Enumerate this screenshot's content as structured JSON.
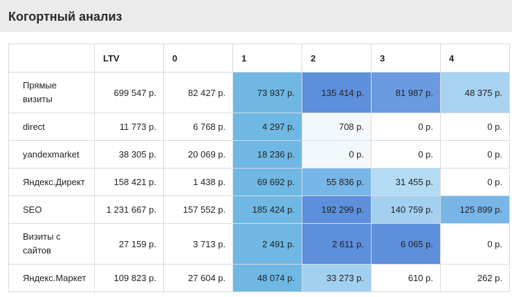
{
  "page": {
    "title": "Когортный анализ"
  },
  "table": {
    "headers": [
      "",
      "LTV",
      "0",
      "1",
      "2",
      "3",
      "4"
    ],
    "rows": [
      {
        "name": "Прямые визиты",
        "cells": [
          "699 547 р.",
          "82 427 р.",
          "73 937 р.",
          "135 414 р.",
          "81 987 р.",
          "48 375 р."
        ],
        "colors": [
          "",
          "",
          "#6fb8e3",
          "#5d8fdb",
          "#6a9ae0",
          "#a7d2f0"
        ]
      },
      {
        "name": "direct",
        "cells": [
          "11 773 р.",
          "6 768 р.",
          "4 297 р.",
          "708 р.",
          "0 р.",
          "0 р."
        ],
        "colors": [
          "",
          "",
          "#6fb8e3",
          "#f3f8fd",
          "",
          ""
        ]
      },
      {
        "name": "yandexmarket",
        "cells": [
          "38 305 р.",
          "20 069 р.",
          "18 236 р.",
          "0 р.",
          "0 р.",
          "0 р."
        ],
        "colors": [
          "",
          "",
          "#6fb8e3",
          "#f3f8fd",
          "",
          ""
        ]
      },
      {
        "name": "Яндекс.Директ",
        "cells": [
          "158 421 р.",
          "1 438 р.",
          "69 692 р.",
          "55 836 р.",
          "31 455 р.",
          "0 р."
        ],
        "colors": [
          "",
          "",
          "#6fb8e3",
          "#78b6e8",
          "#b3dbf3",
          ""
        ]
      },
      {
        "name": "SEO",
        "cells": [
          "1 231 667 р.",
          "157 552 р.",
          "185 424 р.",
          "192 299 р.",
          "140 759 р.",
          "125 899 р."
        ],
        "colors": [
          "",
          "",
          "#6fb8e3",
          "#5d8fdb",
          "#a4d0f0",
          "#78b6e8"
        ]
      },
      {
        "name": "Визиты с сайтов",
        "cells": [
          "27 159 р.",
          "3 713 р.",
          "2 491 р.",
          "2 611 р.",
          "6 065 р.",
          "0 р."
        ],
        "colors": [
          "",
          "",
          "#6fb8e3",
          "#5d8fdb",
          "#5d8fdb",
          ""
        ]
      },
      {
        "name": "Яндекс.Маркет",
        "cells": [
          "109 823 р.",
          "27 604 р.",
          "48 074 р.",
          "33 273 р.",
          "610 р.",
          "262 р."
        ],
        "colors": [
          "",
          "",
          "#6fb8e3",
          "#a4d0f0",
          "",
          ""
        ]
      }
    ]
  }
}
